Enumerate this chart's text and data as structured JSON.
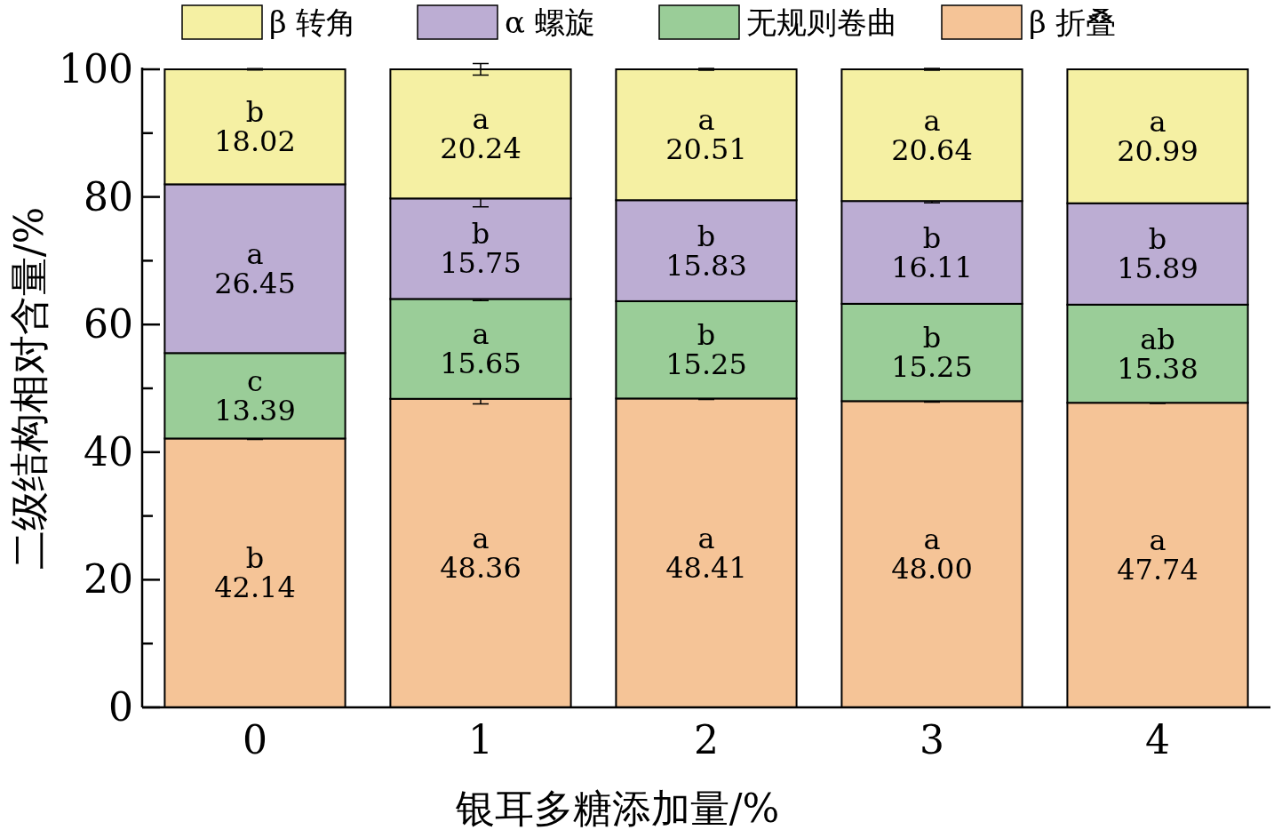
{
  "chart_data": {
    "type": "bar",
    "stacked": true,
    "xlabel": "银耳多糖添加量/%",
    "ylabel": "二级结构相对含量/%",
    "categories": [
      "0",
      "1",
      "2",
      "3",
      "4"
    ],
    "series": [
      {
        "name": "β 折叠",
        "color": "#f5c497",
        "values": [
          42.14,
          48.36,
          48.41,
          48.0,
          47.74
        ],
        "errors": [
          0.15,
          0.8,
          0.15,
          0.15,
          0.1
        ],
        "value_labels": [
          "b\n42.14",
          "a\n48.36",
          "a\n48.41",
          "a\n48.00",
          "a\n47.74"
        ]
      },
      {
        "name": "无规则卷曲",
        "color": "#9acd98",
        "values": [
          13.39,
          15.65,
          15.25,
          15.25,
          15.38
        ],
        "errors": [
          null,
          0.25,
          null,
          null,
          null
        ],
        "value_labels": [
          "c\n13.39",
          "a\n15.65",
          "b\n15.25",
          "b\n15.25",
          "ab\n15.38"
        ]
      },
      {
        "name": "α 螺旋",
        "color": "#bcadd3",
        "values": [
          26.45,
          15.75,
          15.83,
          16.11,
          15.89
        ],
        "errors": [
          null,
          1.3,
          null,
          0.3,
          null
        ],
        "value_labels": [
          "a\n26.45",
          "b\n15.75",
          "b\n15.83",
          "b\n16.11",
          "b\n15.89"
        ]
      },
      {
        "name": "β 转角",
        "color": "#f5f0a3",
        "values": [
          18.02,
          20.24,
          20.51,
          20.64,
          20.99
        ],
        "errors": [
          0.1,
          0.9,
          0.15,
          0.15,
          null
        ],
        "value_labels": [
          "b\n18.02",
          "a\n20.24",
          "a\n20.51",
          "a\n20.64",
          "a\n20.99"
        ]
      }
    ],
    "ylim": [
      0,
      100
    ],
    "yticks": [
      0,
      {
        "value": 10,
        "label": null
      },
      20,
      {
        "value": 30,
        "label": null
      },
      40,
      {
        "value": 50,
        "label": null
      },
      60,
      {
        "value": 70,
        "label": null
      },
      80,
      {
        "value": 90,
        "label": null
      },
      100
    ],
    "legend": "top",
    "grid": false
  }
}
